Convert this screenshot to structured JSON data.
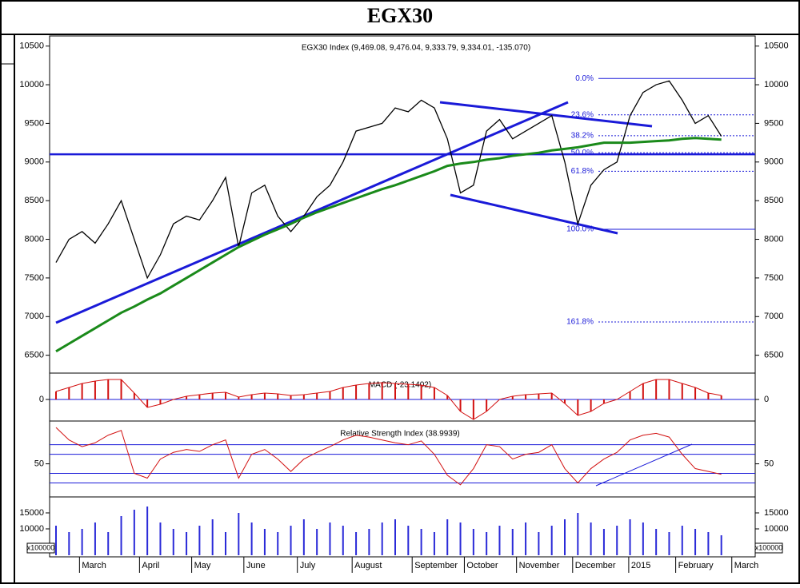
{
  "chart_data": [
    {
      "type": "line",
      "title": "EGX30",
      "legend": "EGX30 Index (9,469.08, 9,476.04, 9,333.79, 9,334.01, -135.070)",
      "xlim": [
        0,
        52
      ],
      "xticks": [
        {
          "value": 1.8,
          "label": "March"
        },
        {
          "value": 6.4,
          "label": "April"
        },
        {
          "value": 10.4,
          "label": "May"
        },
        {
          "value": 14.4,
          "label": "June"
        },
        {
          "value": 18.5,
          "label": "July"
        },
        {
          "value": 22.7,
          "label": "August"
        },
        {
          "value": 27.3,
          "label": "September"
        },
        {
          "value": 31.3,
          "label": "October"
        },
        {
          "value": 35.3,
          "label": "November"
        },
        {
          "value": 39.6,
          "label": "December"
        },
        {
          "value": 43.9,
          "label": "2015"
        },
        {
          "value": 47.5,
          "label": "February"
        },
        {
          "value": 51.8,
          "label": "March"
        }
      ],
      "ylim": [
        6300,
        10600
      ],
      "yticks": [
        6500,
        7000,
        7500,
        8000,
        8500,
        9000,
        9500,
        10000,
        10500
      ],
      "hline": 9100,
      "levels": [
        {
          "label": "0.0%",
          "value": 10080
        },
        {
          "label": "23.6%",
          "value": 9610
        },
        {
          "label": "38.2%",
          "value": 9340
        },
        {
          "label": "50.0%",
          "value": 9120
        },
        {
          "label": "61.8%",
          "value": 8880
        },
        {
          "label": "100.0%",
          "value": 8130
        },
        {
          "label": "161.8%",
          "value": 6930
        }
      ],
      "series": [
        {
          "color": "#000000",
          "values": [
            7700,
            8000,
            8100,
            7950,
            8200,
            8500,
            8000,
            7500,
            7800,
            8200,
            8300,
            8250,
            8500,
            8800,
            7900,
            8600,
            8700,
            8300,
            8100,
            8300,
            8550,
            8700,
            9000,
            9400,
            9450,
            9500,
            9700,
            9650,
            9800,
            9700,
            9300,
            8600,
            8700,
            9400,
            9550,
            9300,
            9400,
            9500,
            9600,
            9000,
            8200,
            8700,
            8900,
            9000,
            9600,
            9900,
            10000,
            10050,
            9800,
            9500,
            9600,
            9334
          ]
        },
        {
          "color": "#1a8a1a",
          "values": [
            6550,
            6650,
            6750,
            6850,
            6950,
            7050,
            7130,
            7220,
            7300,
            7400,
            7500,
            7600,
            7700,
            7800,
            7900,
            7980,
            8060,
            8130,
            8200,
            8280,
            8350,
            8410,
            8470,
            8530,
            8590,
            8650,
            8700,
            8760,
            8820,
            8880,
            8950,
            8980,
            9000,
            9030,
            9050,
            9080,
            9100,
            9120,
            9150,
            9170,
            9190,
            9220,
            9250,
            9250,
            9250,
            9260,
            9270,
            9280,
            9300,
            9310,
            9300,
            9290
          ]
        }
      ]
    },
    {
      "type": "bar",
      "title": "MACD (-23.1402)",
      "color": "#d21010",
      "ylim": [
        -250,
        300
      ],
      "yticks": [
        0
      ],
      "values": [
        100,
        150,
        200,
        230,
        250,
        250,
        80,
        -100,
        -60,
        0,
        40,
        60,
        80,
        90,
        30,
        60,
        80,
        70,
        50,
        60,
        80,
        100,
        150,
        180,
        200,
        210,
        200,
        190,
        180,
        150,
        50,
        -150,
        -250,
        -150,
        0,
        40,
        60,
        70,
        80,
        -50,
        -200,
        -150,
        -50,
        0,
        100,
        200,
        250,
        250,
        200,
        150,
        80,
        50
      ]
    },
    {
      "type": "line",
      "title": "Relative Strength Index (38.9939)",
      "color": "#d21010",
      "ylim": [
        17,
        94
      ],
      "yticks": [
        50
      ],
      "hlines": [
        30,
        40,
        60,
        70
      ],
      "values": [
        88,
        75,
        68,
        72,
        80,
        85,
        40,
        35,
        55,
        62,
        65,
        63,
        70,
        75,
        35,
        60,
        65,
        55,
        42,
        55,
        62,
        68,
        75,
        80,
        78,
        75,
        72,
        70,
        74,
        60,
        38,
        28,
        45,
        70,
        68,
        55,
        60,
        62,
        70,
        45,
        30,
        45,
        55,
        62,
        75,
        80,
        82,
        78,
        60,
        45,
        42,
        39
      ]
    },
    {
      "type": "bar",
      "color": "#2a2ad8",
      "unit": "x100000",
      "ylim": [
        0,
        19000
      ],
      "yticks": [
        10000,
        15000
      ],
      "values": [
        11000,
        9000,
        10000,
        12000,
        9000,
        14000,
        16000,
        17000,
        12000,
        10000,
        9000,
        11000,
        13000,
        9000,
        15000,
        12000,
        10000,
        9000,
        11000,
        13000,
        10000,
        12000,
        11000,
        9000,
        10000,
        12000,
        13000,
        11000,
        10000,
        9000,
        13000,
        12000,
        10000,
        9000,
        11000,
        10000,
        12000,
        9000,
        11000,
        13000,
        15000,
        12000,
        10000,
        11000,
        13000,
        12000,
        10000,
        9000,
        11000,
        10000,
        9000,
        8000
      ]
    }
  ]
}
